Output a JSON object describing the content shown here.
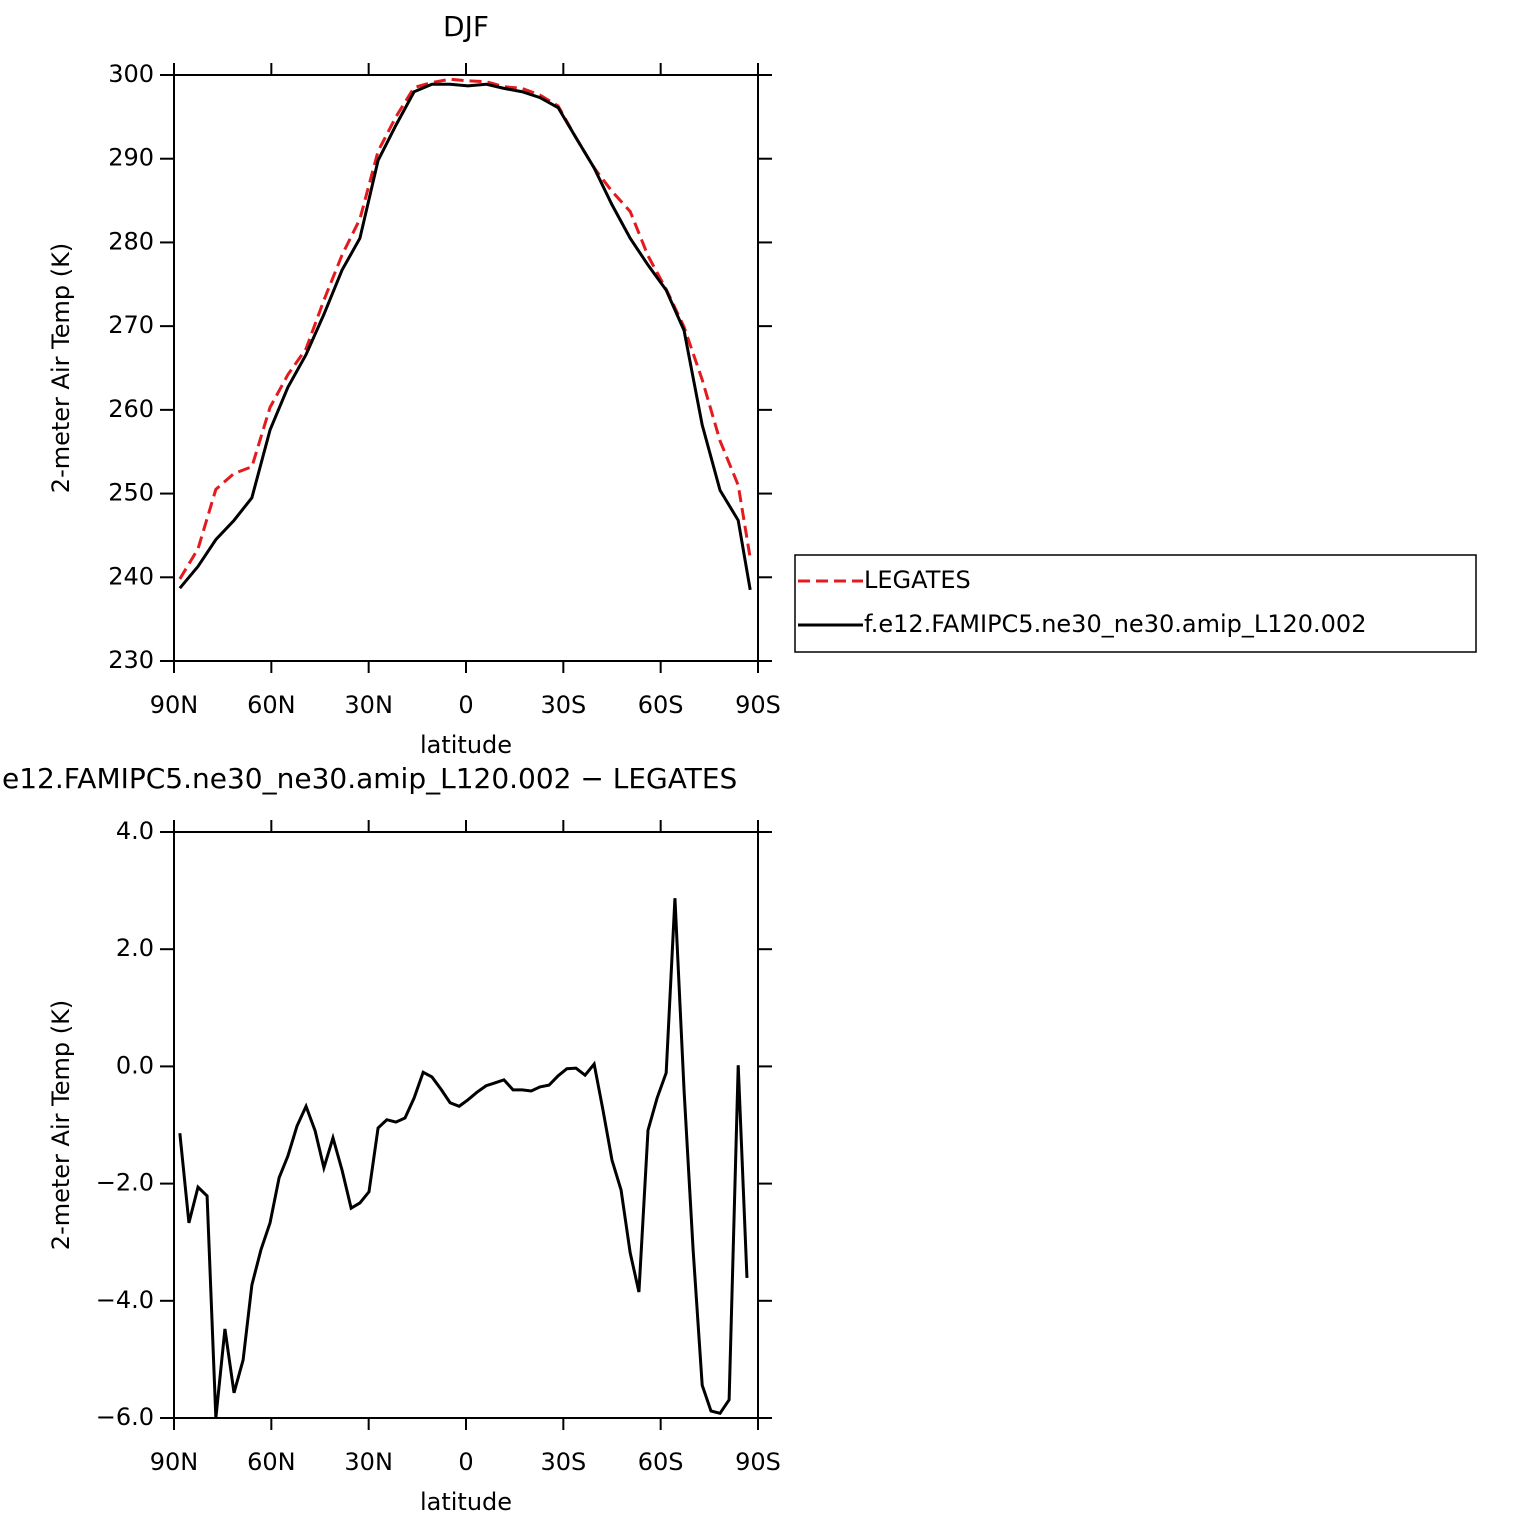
{
  "chart_data": [
    {
      "type": "line",
      "title": "DJF",
      "xlabel": "latitude",
      "ylabel": "2-meter Air Temp (K)",
      "x": [
        88.2,
        82.6,
        77.1,
        71.5,
        66.0,
        60.4,
        54.9,
        49.3,
        43.8,
        38.2,
        32.7,
        27.1,
        21.6,
        16.0,
        10.5,
        4.9,
        -0.6,
        -6.2,
        -11.7,
        -17.3,
        -22.8,
        -28.4,
        -33.9,
        -39.5,
        -45.0,
        -50.6,
        -56.1,
        -61.7,
        -67.2,
        -72.8,
        -78.3,
        -83.9,
        -87.6
      ],
      "series": [
        {
          "name": "LEGATES",
          "color": "#e41a1c",
          "linestyle": "dashed",
          "values": [
            239.8,
            243.4,
            250.5,
            252.4,
            253.2,
            260.3,
            264.2,
            267.3,
            273.1,
            278.5,
            282.8,
            290.9,
            295.0,
            298.5,
            299.1,
            299.5,
            299.3,
            299.2,
            298.6,
            298.4,
            297.6,
            296.3,
            292.5,
            288.9,
            286.1,
            283.7,
            278.4,
            274.4,
            269.9,
            263.6,
            256.3,
            251.0,
            242.3
          ]
        },
        {
          "name": "f.e12.FAMIPC5.ne30_ne30.amip_L120.002",
          "color": "#000000",
          "linestyle": "solid",
          "values": [
            238.7,
            241.3,
            244.5,
            246.8,
            249.5,
            257.6,
            262.7,
            266.6,
            271.4,
            276.7,
            280.5,
            289.8,
            294.0,
            298.0,
            298.9,
            298.9,
            298.7,
            298.9,
            298.4,
            298.0,
            297.3,
            296.1,
            292.5,
            288.9,
            284.5,
            280.5,
            277.3,
            274.3,
            269.5,
            258.2,
            250.4,
            246.8,
            238.5
          ]
        }
      ],
      "xlim": [
        90,
        -90
      ],
      "xticks": [
        {
          "value": 90,
          "label": "90N"
        },
        {
          "value": 60,
          "label": "60N"
        },
        {
          "value": 30,
          "label": "30N"
        },
        0,
        {
          "value": -30,
          "label": "30S"
        },
        {
          "value": -60,
          "label": "60S"
        },
        {
          "value": -90,
          "label": "90S"
        }
      ],
      "ylim": [
        230,
        300
      ],
      "yticks": [
        230,
        240,
        250,
        260,
        270,
        280,
        290,
        300
      ],
      "legend": "right"
    },
    {
      "type": "line",
      "title": "e12.FAMIPC5.ne30_ne30.amip_L120.002 − LEGATES",
      "xlabel": "latitude",
      "ylabel": "2-meter Air Temp (K)",
      "x": [
        88.2,
        85.4,
        82.6,
        79.8,
        77.1,
        74.3,
        71.5,
        68.7,
        66.0,
        63.2,
        60.4,
        57.6,
        54.9,
        52.1,
        49.3,
        46.5,
        43.8,
        41.0,
        38.2,
        35.4,
        32.7,
        29.9,
        27.1,
        24.4,
        21.6,
        18.8,
        16.0,
        13.2,
        10.5,
        7.7,
        4.9,
        2.1,
        -0.6,
        -3.4,
        -6.2,
        -9.0,
        -11.7,
        -14.5,
        -17.3,
        -20.1,
        -22.8,
        -25.6,
        -28.4,
        -31.1,
        -33.9,
        -36.7,
        -39.5,
        -42.2,
        -45.0,
        -47.8,
        -50.6,
        -53.3,
        -56.1,
        -58.9,
        -61.7,
        -64.4,
        -67.2,
        -70.0,
        -72.8,
        -75.5,
        -78.3,
        -81.1,
        -83.9,
        -86.6
      ],
      "series": [
        {
          "color": "#000000",
          "linestyle": "solid",
          "values": [
            -1.14,
            -2.67,
            -2.06,
            -2.21,
            -6.0,
            -4.48,
            -5.57,
            -5.01,
            -3.73,
            -3.13,
            -2.67,
            -1.9,
            -1.53,
            -1.02,
            -0.68,
            -1.1,
            -1.73,
            -1.22,
            -1.77,
            -2.42,
            -2.33,
            -2.14,
            -1.05,
            -0.91,
            -0.95,
            -0.88,
            -0.54,
            -0.1,
            -0.18,
            -0.39,
            -0.62,
            -0.68,
            -0.57,
            -0.44,
            -0.33,
            -0.28,
            -0.23,
            -0.4,
            -0.4,
            -0.42,
            -0.35,
            -0.32,
            -0.16,
            -0.04,
            -0.03,
            -0.15,
            0.04,
            -0.74,
            -1.6,
            -2.11,
            -3.18,
            -3.85,
            -1.09,
            -0.54,
            -0.11,
            2.87,
            -0.4,
            -3.13,
            -5.44,
            -5.88,
            -5.92,
            -5.69,
            0.02,
            -3.61
          ]
        }
      ],
      "xlim": [
        90,
        -90
      ],
      "xticks": [
        {
          "value": 90,
          "label": "90N"
        },
        {
          "value": 60,
          "label": "60N"
        },
        {
          "value": 30,
          "label": "30N"
        },
        0,
        {
          "value": -30,
          "label": "30S"
        },
        {
          "value": -60,
          "label": "60S"
        },
        {
          "value": -90,
          "label": "90S"
        }
      ],
      "ylim": [
        -6,
        4
      ],
      "yticks": [
        {
          "value": -6,
          "label": "−6.0"
        },
        {
          "value": -4,
          "label": "−4.0"
        },
        {
          "value": -2,
          "label": "−2.0"
        },
        {
          "value": 0,
          "label": "0.0"
        },
        {
          "value": 2,
          "label": "2.0"
        },
        {
          "value": 4,
          "label": "4.0"
        }
      ]
    }
  ]
}
